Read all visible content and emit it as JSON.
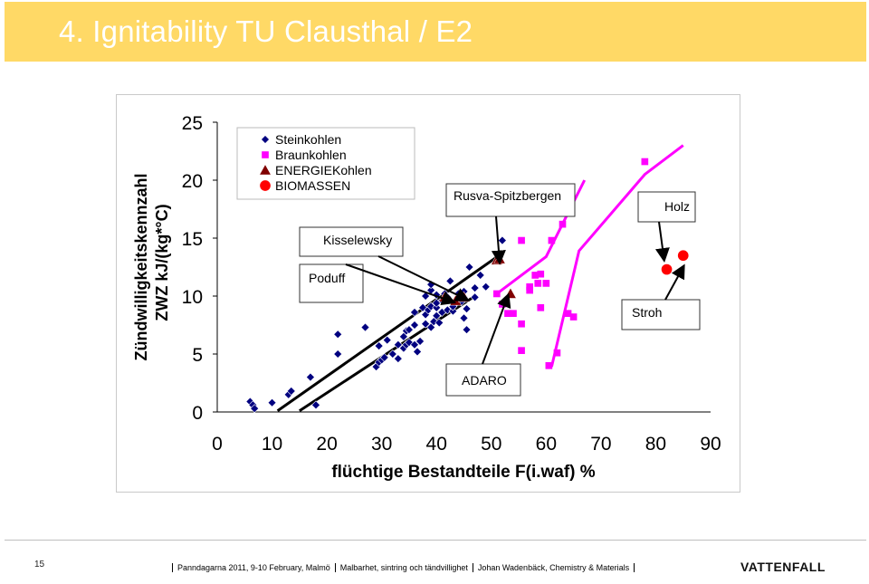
{
  "title": "4. Ignitability TU Clausthal / E2",
  "slide_number": "15",
  "footer": [
    "Panndagarna 2011, 9-10 February, Malmö",
    "Malbarhet, sintring och tändvillighet",
    "Johan Wadenbäck, Chemistry & Materials"
  ],
  "logo": "VATTENFALL",
  "colors": {
    "title_bg": "#ffd966",
    "stein": "#000080",
    "braun": "#ff00ff",
    "energie": "#800000",
    "biomass": "#ff0000",
    "trend_black": "#000000",
    "trend_magenta": "#ff00ff"
  },
  "chart_data": {
    "type": "scatter",
    "xlabel": "flüchtige Bestandteile F(i.waf)   %",
    "ylabel_line1": "Zündwilligkeitskennzahl",
    "ylabel_line2": "ZWZ  kJ/(kg*°C)",
    "xlim": [
      0,
      90
    ],
    "ylim": [
      0,
      25
    ],
    "x_ticks": [
      0,
      10,
      20,
      30,
      40,
      50,
      60,
      70,
      80,
      90
    ],
    "y_ticks": [
      0,
      5,
      10,
      15,
      20,
      25
    ],
    "legend_position": "top-left",
    "series": [
      {
        "name": "Steinkohlen",
        "marker": "diamond",
        "color": "#000080",
        "points": [
          [
            6,
            0.9
          ],
          [
            6.5,
            0.6
          ],
          [
            6.8,
            0.3
          ],
          [
            10,
            0.8
          ],
          [
            13,
            1.5
          ],
          [
            13.5,
            1.8
          ],
          [
            17,
            3
          ],
          [
            18,
            0.6
          ],
          [
            22,
            5
          ],
          [
            22,
            6.7
          ],
          [
            27,
            7.3
          ],
          [
            29,
            3.9
          ],
          [
            29.5,
            4.3
          ],
          [
            29.5,
            5.7
          ],
          [
            30,
            4.5
          ],
          [
            30.5,
            4.7
          ],
          [
            31,
            6.2
          ],
          [
            32,
            5
          ],
          [
            33,
            4.6
          ],
          [
            33,
            5.8
          ],
          [
            34,
            5.5
          ],
          [
            34,
            6.5
          ],
          [
            34.5,
            7
          ],
          [
            34.5,
            5.8
          ],
          [
            35,
            6
          ],
          [
            35,
            7.1
          ],
          [
            36,
            5.8
          ],
          [
            36,
            7.5
          ],
          [
            36,
            8.6
          ],
          [
            36.5,
            5.2
          ],
          [
            37,
            6.1
          ],
          [
            37.5,
            9
          ],
          [
            38,
            7.6
          ],
          [
            38,
            8.4
          ],
          [
            38.5,
            8.8
          ],
          [
            38,
            10
          ],
          [
            39,
            7.3
          ],
          [
            39,
            9.1
          ],
          [
            39,
            10.5
          ],
          [
            39,
            11
          ],
          [
            39.5,
            7.8
          ],
          [
            40,
            8.3
          ],
          [
            40,
            9
          ],
          [
            40,
            9.4
          ],
          [
            40,
            10.1
          ],
          [
            40.5,
            7.7
          ],
          [
            41,
            8.6
          ],
          [
            41,
            9.6
          ],
          [
            41.5,
            10.2
          ],
          [
            42,
            8.8
          ],
          [
            42,
            9.9
          ],
          [
            42.5,
            11.3
          ],
          [
            43,
            8.7
          ],
          [
            43,
            9.1
          ],
          [
            44,
            9.7
          ],
          [
            44,
            10.2
          ],
          [
            44.5,
            9.5
          ],
          [
            45,
            8.1
          ],
          [
            45,
            9.9
          ],
          [
            45,
            10.4
          ],
          [
            45.5,
            7.1
          ],
          [
            45.5,
            8.9
          ],
          [
            46,
            12.5
          ],
          [
            47,
            10.7
          ],
          [
            47,
            9.9
          ],
          [
            48,
            11.8
          ],
          [
            49,
            10.8
          ],
          [
            52,
            14.8
          ]
        ]
      },
      {
        "name": "Braunkohlen",
        "marker": "square",
        "color": "#ff00ff",
        "points": [
          [
            51,
            10.2
          ],
          [
            52,
            9.3
          ],
          [
            53,
            8.5
          ],
          [
            54,
            8.5
          ],
          [
            55.5,
            7.6
          ],
          [
            55.5,
            5.3
          ],
          [
            55.5,
            14.8
          ],
          [
            57,
            10.5
          ],
          [
            57,
            10.8
          ],
          [
            58,
            11.8
          ],
          [
            58.5,
            11.1
          ],
          [
            59,
            11.9
          ],
          [
            59,
            9
          ],
          [
            60,
            11.1
          ],
          [
            60.5,
            4.0
          ],
          [
            61,
            14.8
          ],
          [
            62,
            5.1
          ],
          [
            63,
            16.2
          ],
          [
            64,
            8.5
          ],
          [
            65,
            8.2
          ],
          [
            78,
            21.6
          ]
        ]
      },
      {
        "name": "ENERGIEKohlen",
        "marker": "triangle",
        "color": "#800000",
        "points": [
          [
            41.5,
            9.9
          ],
          [
            43.5,
            9.6
          ],
          [
            45,
            9.9
          ],
          [
            51,
            13.1
          ],
          [
            51.5,
            13.2
          ],
          [
            53.5,
            10.2
          ]
        ]
      },
      {
        "name": "BIOMASSEN",
        "marker": "circle",
        "color": "#ff0000",
        "points": [
          [
            82,
            12.3
          ],
          [
            85,
            13.5
          ]
        ]
      }
    ],
    "trend_lines": [
      {
        "color": "#000000",
        "points": [
          [
            15,
            0.1
          ],
          [
            47,
            10
          ]
        ]
      },
      {
        "color": "#000000",
        "points": [
          [
            11,
            0.1
          ],
          [
            52,
            13.7
          ]
        ]
      },
      {
        "color": "#ff00ff",
        "points": [
          [
            51,
            10.2
          ],
          [
            60,
            13.4
          ],
          [
            67,
            20
          ]
        ]
      },
      {
        "color": "#ff00ff",
        "points": [
          [
            61,
            3.9
          ],
          [
            66,
            13.9
          ],
          [
            78,
            20.5
          ],
          [
            85,
            23
          ]
        ]
      }
    ],
    "annotations": [
      {
        "text": "Poduff",
        "arrow_to": [
          43,
          9.5
        ]
      },
      {
        "text": "Kisselewsky",
        "arrow_to": [
          45.5,
          9.7
        ]
      },
      {
        "text": "Rusva-Spitzbergen",
        "arrow_to": [
          51.5,
          13
        ]
      },
      {
        "text": "Holz",
        "arrow_to": [
          81.5,
          13.2
        ]
      },
      {
        "text": "Stroh",
        "arrow_to": [
          85,
          12.5
        ]
      },
      {
        "text": "ADARO",
        "arrow_to": [
          53,
          10
        ]
      }
    ]
  }
}
